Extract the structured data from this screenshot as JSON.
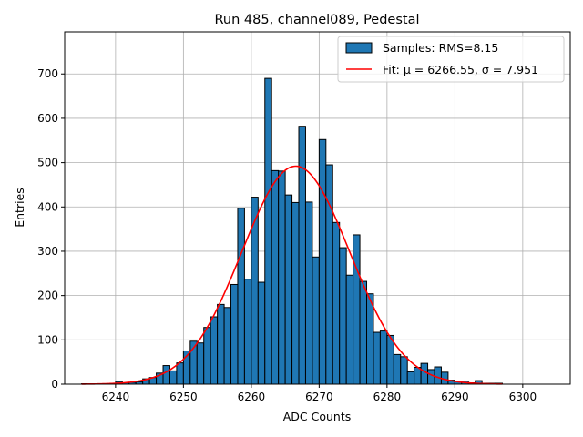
{
  "chart_data": {
    "type": "bar",
    "title": "Run 485, channel089, Pedestal",
    "xlabel": "ADC Counts",
    "ylabel": "Entries",
    "xlim": [
      6232.5,
      6307.0
    ],
    "ylim": [
      0,
      795
    ],
    "xticks": [
      6240,
      6250,
      6260,
      6270,
      6280,
      6290,
      6300
    ],
    "yticks": [
      0,
      100,
      200,
      300,
      400,
      500,
      600,
      700
    ],
    "grid": true,
    "legend_position": "top-right",
    "bin_width": 1,
    "series": [
      {
        "name": "Samples: RMS=8.15",
        "kind": "histogram",
        "color": "#1f77b4",
        "edgecolor": "#000000",
        "bins": [
          {
            "x": 6235,
            "count": 1
          },
          {
            "x": 6236,
            "count": 0
          },
          {
            "x": 6237,
            "count": 1
          },
          {
            "x": 6238,
            "count": 0
          },
          {
            "x": 6239,
            "count": 1
          },
          {
            "x": 6240,
            "count": 6
          },
          {
            "x": 6241,
            "count": 3
          },
          {
            "x": 6242,
            "count": 4
          },
          {
            "x": 6243,
            "count": 5
          },
          {
            "x": 6244,
            "count": 12
          },
          {
            "x": 6245,
            "count": 15
          },
          {
            "x": 6246,
            "count": 25
          },
          {
            "x": 6247,
            "count": 42
          },
          {
            "x": 6248,
            "count": 30
          },
          {
            "x": 6249,
            "count": 48
          },
          {
            "x": 6250,
            "count": 75
          },
          {
            "x": 6251,
            "count": 97
          },
          {
            "x": 6252,
            "count": 93
          },
          {
            "x": 6253,
            "count": 128
          },
          {
            "x": 6254,
            "count": 152
          },
          {
            "x": 6255,
            "count": 180
          },
          {
            "x": 6256,
            "count": 173
          },
          {
            "x": 6257,
            "count": 225
          },
          {
            "x": 6258,
            "count": 397
          },
          {
            "x": 6259,
            "count": 237
          },
          {
            "x": 6260,
            "count": 422
          },
          {
            "x": 6261,
            "count": 230
          },
          {
            "x": 6262,
            "count": 690
          },
          {
            "x": 6263,
            "count": 482
          },
          {
            "x": 6264,
            "count": 481
          },
          {
            "x": 6265,
            "count": 427
          },
          {
            "x": 6266,
            "count": 410
          },
          {
            "x": 6267,
            "count": 582
          },
          {
            "x": 6268,
            "count": 411
          },
          {
            "x": 6269,
            "count": 287
          },
          {
            "x": 6270,
            "count": 552
          },
          {
            "x": 6271,
            "count": 495
          },
          {
            "x": 6272,
            "count": 365
          },
          {
            "x": 6273,
            "count": 308
          },
          {
            "x": 6274,
            "count": 246
          },
          {
            "x": 6275,
            "count": 337
          },
          {
            "x": 6276,
            "count": 232
          },
          {
            "x": 6277,
            "count": 204
          },
          {
            "x": 6278,
            "count": 117
          },
          {
            "x": 6279,
            "count": 120
          },
          {
            "x": 6280,
            "count": 110
          },
          {
            "x": 6281,
            "count": 67
          },
          {
            "x": 6282,
            "count": 62
          },
          {
            "x": 6283,
            "count": 28
          },
          {
            "x": 6284,
            "count": 38
          },
          {
            "x": 6285,
            "count": 47
          },
          {
            "x": 6286,
            "count": 33
          },
          {
            "x": 6287,
            "count": 39
          },
          {
            "x": 6288,
            "count": 27
          },
          {
            "x": 6289,
            "count": 9
          },
          {
            "x": 6290,
            "count": 7
          },
          {
            "x": 6291,
            "count": 7
          },
          {
            "x": 6292,
            "count": 3
          },
          {
            "x": 6293,
            "count": 8
          },
          {
            "x": 6294,
            "count": 2
          },
          {
            "x": 6295,
            "count": 2
          },
          {
            "x": 6296,
            "count": 2
          }
        ]
      },
      {
        "name": "Fit: μ = 6266.55, σ = 7.951",
        "kind": "gaussian_fit",
        "color": "#ff0000",
        "mu": 6266.55,
        "sigma": 7.951,
        "amplitude": 492,
        "x_range": [
          6235,
          6297
        ]
      }
    ]
  }
}
